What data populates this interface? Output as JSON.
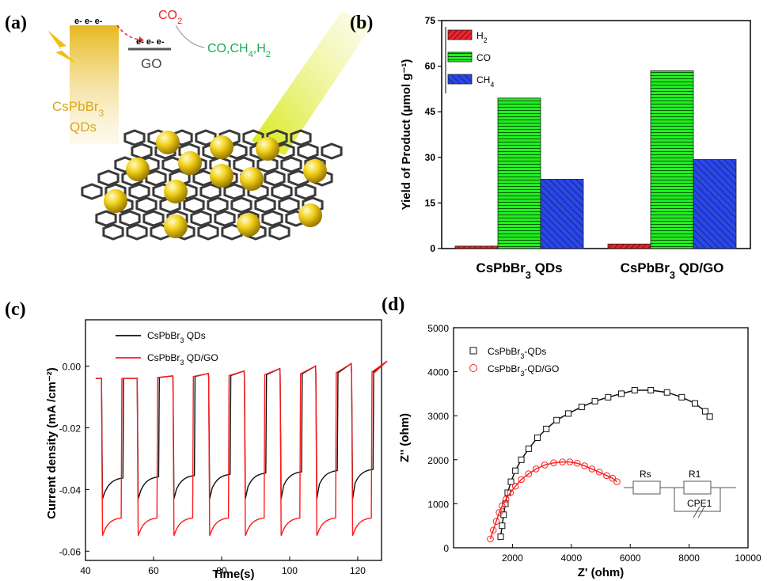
{
  "panels": {
    "a": {
      "label": "(a)"
    },
    "b": {
      "label": "(b)"
    },
    "c": {
      "label": "(c)"
    },
    "d": {
      "label": "(d)"
    }
  },
  "schematic": {
    "electrons": "e- e- e-",
    "electrons_go": "e- e- e-",
    "co2": "CO2",
    "products": "CO,CH4,H2",
    "go": "GO",
    "qd_line1": "CsPbBr3",
    "qd_line2": "QDs",
    "colors": {
      "qd": "#e6b81e",
      "co2": "#e8262c",
      "products": "#1aaa5a",
      "go": "#444444",
      "sphere": "#f2d21a",
      "graphene": "#3a3a3a"
    }
  },
  "chart_data": [
    {
      "id": "b",
      "type": "bar",
      "ylabel": "Yield of Product (μmol g⁻¹)",
      "categories": [
        "CsPbBr3 QDs",
        "CsPbBr3 QD/GO"
      ],
      "ylim": [
        0,
        75
      ],
      "yticks": [
        0,
        15,
        30,
        45,
        60,
        75
      ],
      "series": [
        {
          "name": "H2",
          "values": [
            0.8,
            1.5
          ],
          "color": "#e8262c",
          "pattern": "diagonal"
        },
        {
          "name": "CO",
          "values": [
            49.5,
            58.5
          ],
          "color": "#22ee22",
          "pattern": "horizontal"
        },
        {
          "name": "CH4",
          "values": [
            22.8,
            29.3
          ],
          "color": "#2040e0",
          "pattern": "diagonal"
        }
      ],
      "legend": "top-left"
    },
    {
      "id": "c",
      "type": "line",
      "xlabel": "Time(s)",
      "ylabel": "Current density (mA /cm⁻²)",
      "xlim": [
        40,
        127
      ],
      "ylim": [
        -0.063,
        0.015
      ],
      "xticks": [
        40,
        60,
        80,
        100,
        120
      ],
      "yticks": [
        0.0,
        -0.02,
        -0.04,
        -0.06
      ],
      "ytick_labels": [
        "0.00",
        "-0.02",
        "-0.04",
        "-0.06"
      ],
      "on_times": [
        45,
        55.5,
        66,
        76.5,
        87,
        97.5,
        108,
        118.5
      ],
      "pulse_width": 6,
      "baseline": -0.004,
      "series": [
        {
          "name": "CsPbBr3 QDs",
          "color": "#111111",
          "spike": -0.043,
          "plateau": -0.036
        },
        {
          "name": "CsPbBr3 QD/GO",
          "color": "#ff1a1a",
          "spike": -0.055,
          "plateau": -0.049
        }
      ],
      "legend": "top-left"
    },
    {
      "id": "d",
      "type": "scatter",
      "xlabel": "Z' (ohm)",
      "ylabel": "Z'' (ohm)",
      "xlim": [
        0,
        10000
      ],
      "ylim": [
        0,
        5000
      ],
      "xticks": [
        2000,
        4000,
        6000,
        8000,
        10000
      ],
      "yticks": [
        0,
        1000,
        2000,
        3000,
        4000,
        5000
      ],
      "series": [
        {
          "name": "CsPbBr3-QDs",
          "marker": "square",
          "color": "#111111",
          "x": [
            1600,
            1650,
            1700,
            1760,
            1840,
            1950,
            2100,
            2300,
            2550,
            2850,
            3150,
            3500,
            3900,
            4350,
            4800,
            5250,
            5700,
            6150,
            6700,
            7250,
            7750,
            8200,
            8550,
            8700
          ],
          "y": [
            250,
            500,
            750,
            1000,
            1250,
            1500,
            1750,
            2000,
            2250,
            2500,
            2700,
            2900,
            3050,
            3200,
            3330,
            3420,
            3500,
            3580,
            3580,
            3530,
            3420,
            3280,
            3100,
            2980
          ]
        },
        {
          "name": "CsPbBr3-QD/GO",
          "marker": "circle",
          "color": "#ff2020",
          "x": [
            1250,
            1350,
            1450,
            1550,
            1650,
            1780,
            1930,
            2100,
            2300,
            2550,
            2800,
            3100,
            3400,
            3700,
            3950,
            4200,
            4450,
            4700,
            4950,
            5200,
            5400,
            5550
          ],
          "y": [
            200,
            400,
            600,
            800,
            950,
            1100,
            1250,
            1400,
            1550,
            1680,
            1790,
            1880,
            1930,
            1950,
            1950,
            1920,
            1860,
            1790,
            1720,
            1640,
            1580,
            1500
          ]
        }
      ],
      "inset": {
        "labels": [
          "Rs",
          "R1",
          "CPE1"
        ]
      },
      "legend": "top-left"
    }
  ]
}
